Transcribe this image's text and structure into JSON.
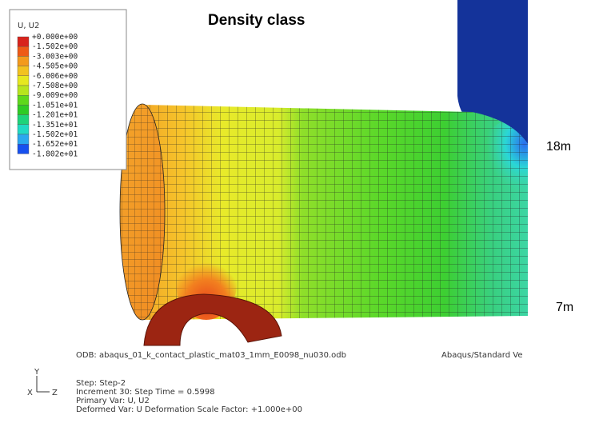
{
  "title": "Density class",
  "legend": {
    "title": "U, U2",
    "labels": [
      "+0.000e+00",
      "-1.502e+00",
      "-3.003e+00",
      "-4.505e+00",
      "-6.006e+00",
      "-7.508e+00",
      "-9.009e+00",
      "-1.051e+01",
      "-1.201e+01",
      "-1.351e+01",
      "-1.502e+01",
      "-1.652e+01",
      "-1.802e+01"
    ],
    "colors": [
      "#d8231c",
      "#ee5a16",
      "#f39a1c",
      "#f2c21f",
      "#e6e81f",
      "#b7e51e",
      "#5ed81c",
      "#2ecb25",
      "#1ed37a",
      "#21d9c3",
      "#2ba7ef",
      "#1750ef"
    ]
  },
  "annotations": [
    "18m",
    "7m"
  ],
  "triad": {
    "y": "Y",
    "z": "Z",
    "x": "X"
  },
  "info": {
    "odb": "ODB: abaqus_01_k_contact_plastic_mat03_1mm_E0098_nu030.odb",
    "solver": "Abaqus/Standard Ve",
    "lines": [
      "Step: Step-2",
      "Increment     30: Step Time =    0.5998",
      "Primary Var: U, U2",
      "Deformed Var: U   Deformation Scale Factor: +1.000e+00"
    ]
  }
}
